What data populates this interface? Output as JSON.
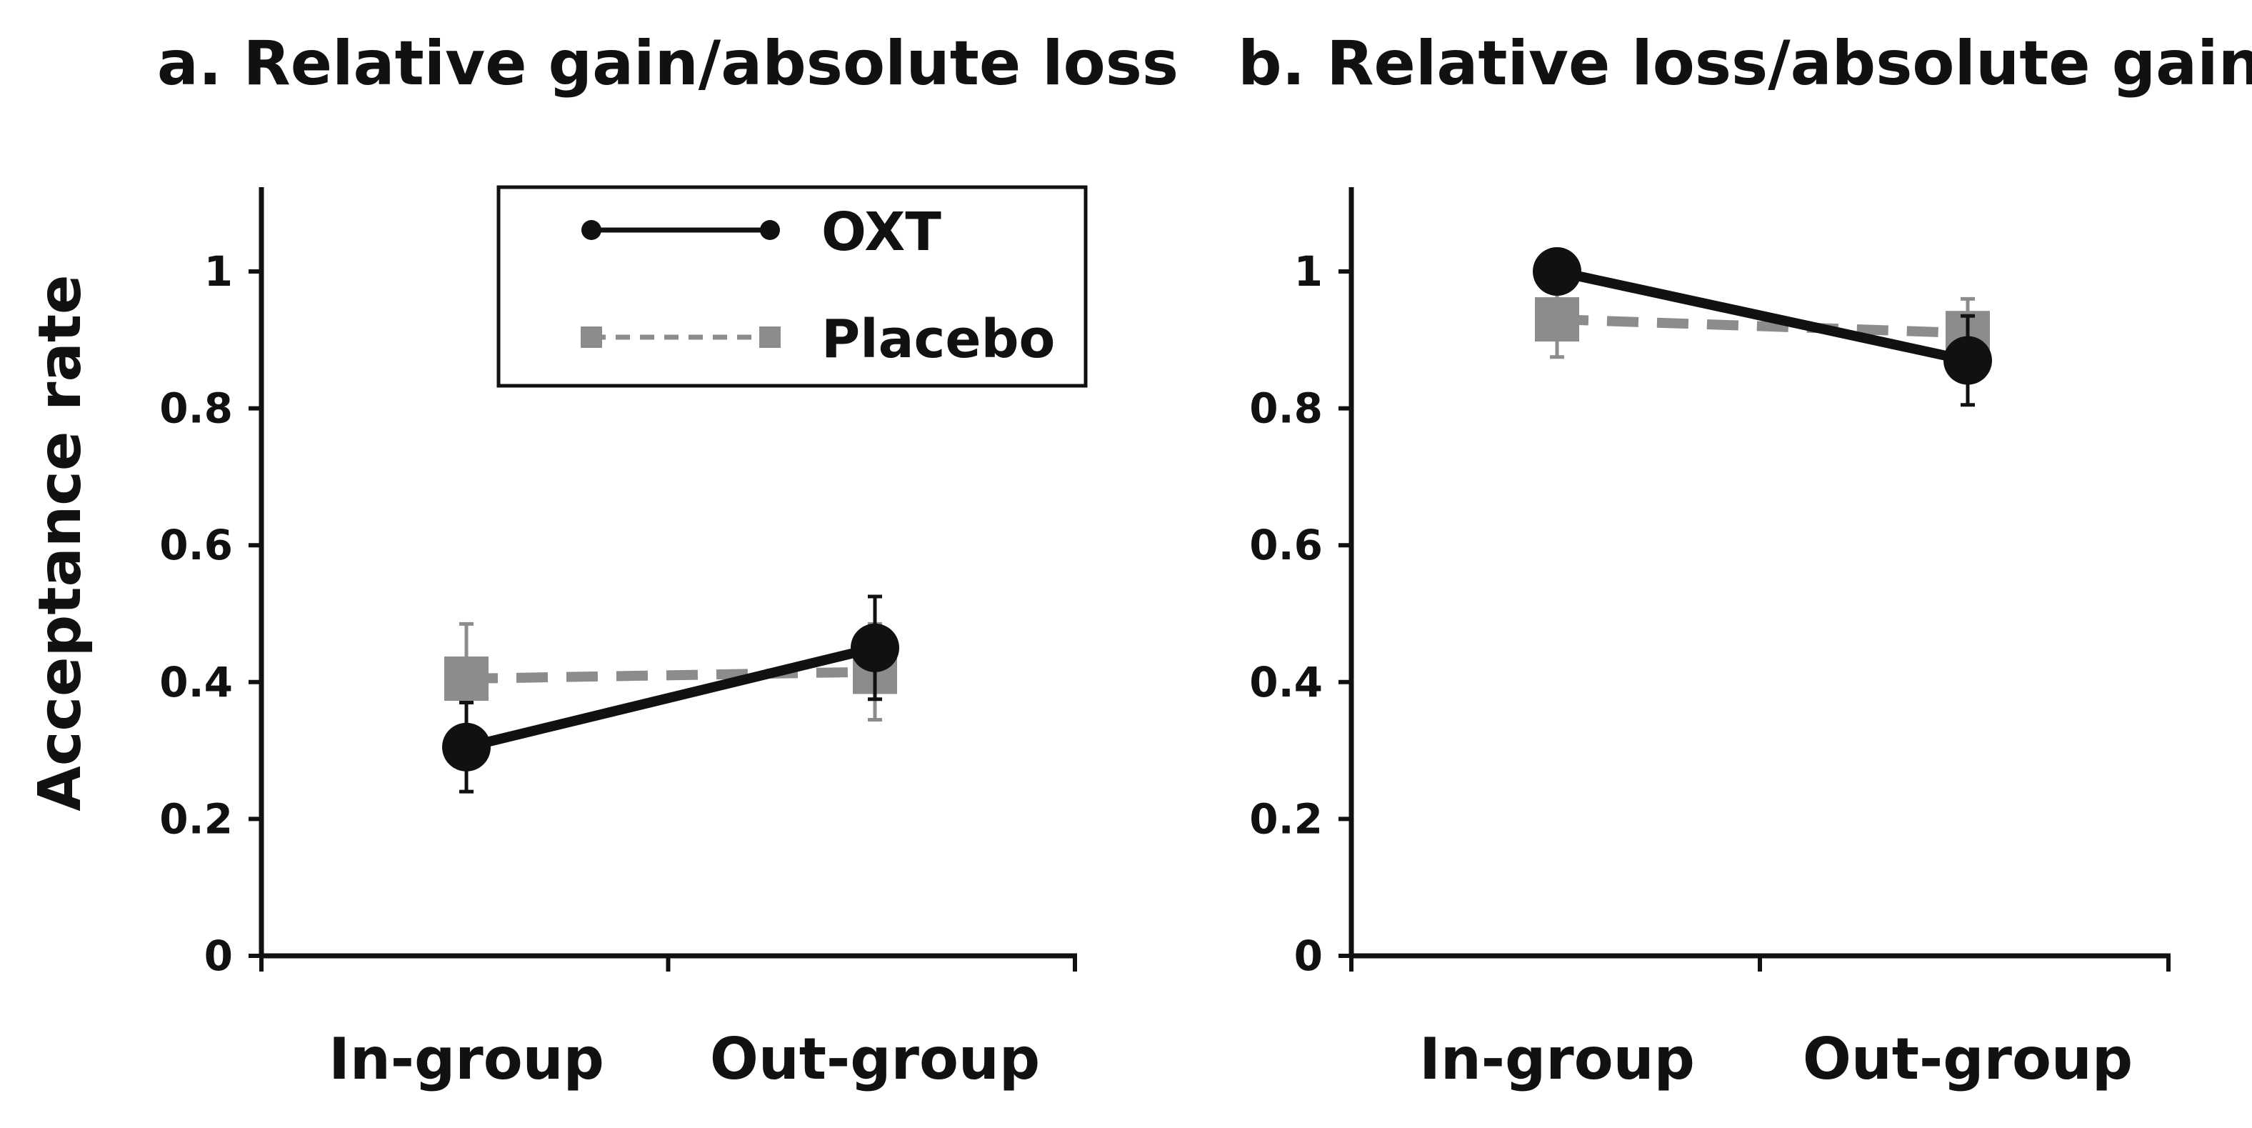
{
  "y_axis_label": "Acceptance rate",
  "legend": {
    "entries": [
      {
        "name": "OXT",
        "style": "solid",
        "color": "#111111",
        "marker": "circle"
      },
      {
        "name": "Placebo",
        "style": "dashed",
        "color": "#8c8c8c",
        "marker": "square"
      }
    ]
  },
  "chart_data": [
    {
      "type": "line",
      "title": "a. Relative gain/absolute loss",
      "xlabel": "",
      "ylabel": "Acceptance rate",
      "categories": [
        "In-group",
        "Out-group"
      ],
      "ylim": [
        0,
        1.1
      ],
      "yticks": [
        0,
        0.2,
        0.4,
        0.6,
        0.8,
        1
      ],
      "ytick_labels": [
        "0",
        "0.2",
        "0.4",
        "0.6",
        "0.8",
        "1"
      ],
      "series": [
        {
          "name": "Placebo",
          "values": [
            0.405,
            0.415
          ],
          "errors": [
            0.08,
            0.07
          ]
        },
        {
          "name": "OXT",
          "values": [
            0.305,
            0.45
          ],
          "errors": [
            0.065,
            0.075
          ]
        }
      ]
    },
    {
      "type": "line",
      "title": "b. Relative loss/absolute gain",
      "xlabel": "",
      "ylabel": "",
      "categories": [
        "In-group",
        "Out-group"
      ],
      "ylim": [
        0,
        1.1
      ],
      "yticks": [
        0,
        0.2,
        0.4,
        0.6,
        0.8,
        1
      ],
      "ytick_labels": [
        "0",
        "0.2",
        "0.4",
        "0.6",
        "0.8",
        "1"
      ],
      "series": [
        {
          "name": "Placebo",
          "values": [
            0.93,
            0.91
          ],
          "errors": [
            0.055,
            0.05
          ]
        },
        {
          "name": "OXT",
          "values": [
            1.0,
            0.87
          ],
          "errors": [
            0.0,
            0.065
          ]
        }
      ]
    }
  ]
}
